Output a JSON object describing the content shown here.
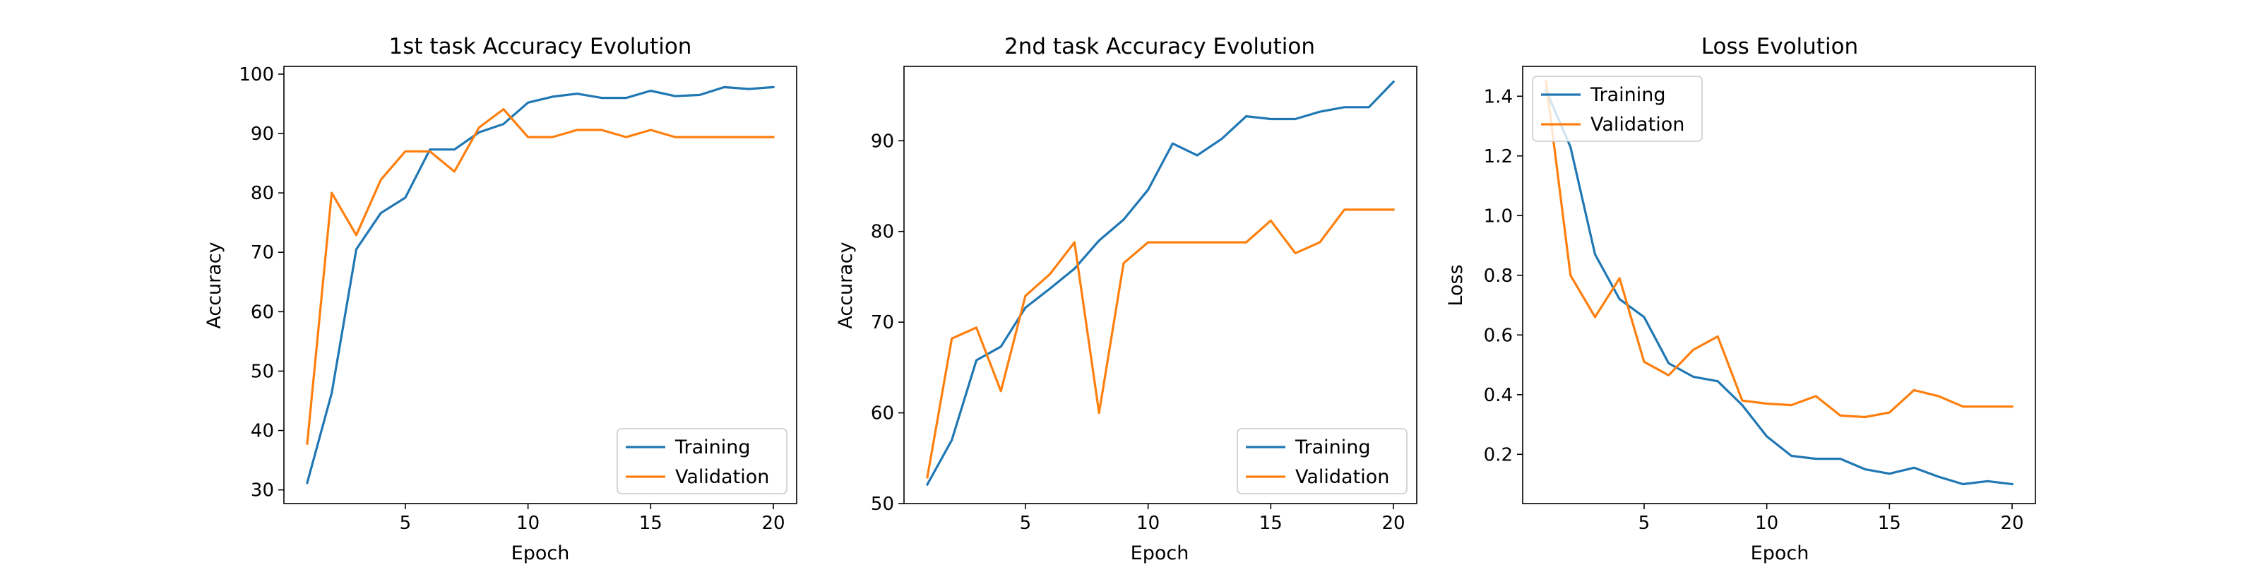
{
  "colors": {
    "training": "#1f77b4",
    "validation": "#ff7f0e"
  },
  "chart_data": [
    {
      "type": "line",
      "title": "1st task Accuracy Evolution",
      "xlabel": "Epoch",
      "ylabel": "Accuracy",
      "xlim": [
        0.05,
        20.95
      ],
      "ylim": [
        27.7,
        101.3
      ],
      "xticks": [
        5,
        10,
        15,
        20
      ],
      "yticks": [
        30,
        40,
        50,
        60,
        70,
        80,
        90,
        100
      ],
      "legend": "lower right",
      "grid": false,
      "x": [
        1,
        2,
        3,
        4,
        5,
        6,
        7,
        8,
        9,
        10,
        11,
        12,
        13,
        14,
        15,
        16,
        17,
        18,
        19,
        20
      ],
      "series": [
        {
          "name": "Training",
          "color": "#1f77b4",
          "values": [
            31.2,
            46.3,
            70.5,
            76.6,
            79.2,
            87.3,
            87.3,
            90.2,
            91.6,
            95.2,
            96.2,
            96.7,
            96.0,
            96.0,
            97.2,
            96.3,
            96.5,
            97.8,
            97.5,
            97.8
          ]
        },
        {
          "name": "Validation",
          "color": "#ff7f0e",
          "values": [
            37.8,
            80.0,
            72.9,
            82.2,
            87.0,
            87.0,
            83.6,
            91.0,
            94.1,
            89.4,
            89.4,
            90.6,
            90.6,
            89.4,
            90.6,
            89.4,
            89.4,
            89.4,
            89.4,
            89.4
          ]
        }
      ]
    },
    {
      "type": "line",
      "title": "2nd task Accuracy Evolution",
      "xlabel": "Epoch",
      "ylabel": "Accuracy",
      "xlim": [
        0.05,
        20.95
      ],
      "ylim": [
        50.0,
        98.2
      ],
      "xticks": [
        5,
        10,
        15,
        20
      ],
      "yticks": [
        50,
        60,
        70,
        80,
        90
      ],
      "legend": "lower right",
      "grid": false,
      "x": [
        1,
        2,
        3,
        4,
        5,
        6,
        7,
        8,
        9,
        10,
        11,
        12,
        13,
        14,
        15,
        16,
        17,
        18,
        19,
        20
      ],
      "series": [
        {
          "name": "Training",
          "color": "#1f77b4",
          "values": [
            52.1,
            57.0,
            65.8,
            67.3,
            71.6,
            73.7,
            75.9,
            79.0,
            81.3,
            84.6,
            89.7,
            88.4,
            90.2,
            92.7,
            92.4,
            92.4,
            93.2,
            93.7,
            93.7,
            96.5
          ]
        },
        {
          "name": "Validation",
          "color": "#ff7f0e",
          "values": [
            52.9,
            68.2,
            69.4,
            62.4,
            72.9,
            75.3,
            78.8,
            60.0,
            76.5,
            78.8,
            78.8,
            78.8,
            78.8,
            78.8,
            81.2,
            77.6,
            78.8,
            82.4,
            82.4,
            82.4
          ]
        }
      ]
    },
    {
      "type": "line",
      "title": "Loss Evolution",
      "xlabel": "Epoch",
      "ylabel": "Loss",
      "xlim": [
        0.05,
        20.95
      ],
      "ylim": [
        0.035,
        1.5
      ],
      "xticks": [
        5,
        10,
        15,
        20
      ],
      "yticks": [
        0.2,
        0.4,
        0.6,
        0.8,
        1.0,
        1.2,
        1.4
      ],
      "legend": "upper left",
      "grid": false,
      "x": [
        1,
        2,
        3,
        4,
        5,
        6,
        7,
        8,
        9,
        10,
        11,
        12,
        13,
        14,
        15,
        16,
        17,
        18,
        19,
        20
      ],
      "series": [
        {
          "name": "Training",
          "color": "#1f77b4",
          "values": [
            1.42,
            1.23,
            0.87,
            0.72,
            0.66,
            0.505,
            0.46,
            0.445,
            0.365,
            0.26,
            0.195,
            0.185,
            0.185,
            0.15,
            0.135,
            0.155,
            0.125,
            0.1,
            0.11,
            0.1
          ]
        },
        {
          "name": "Validation",
          "color": "#ff7f0e",
          "values": [
            1.45,
            0.8,
            0.66,
            0.79,
            0.51,
            0.465,
            0.55,
            0.595,
            0.38,
            0.37,
            0.365,
            0.395,
            0.33,
            0.325,
            0.34,
            0.415,
            0.395,
            0.36,
            0.36,
            0.36
          ]
        }
      ]
    }
  ]
}
